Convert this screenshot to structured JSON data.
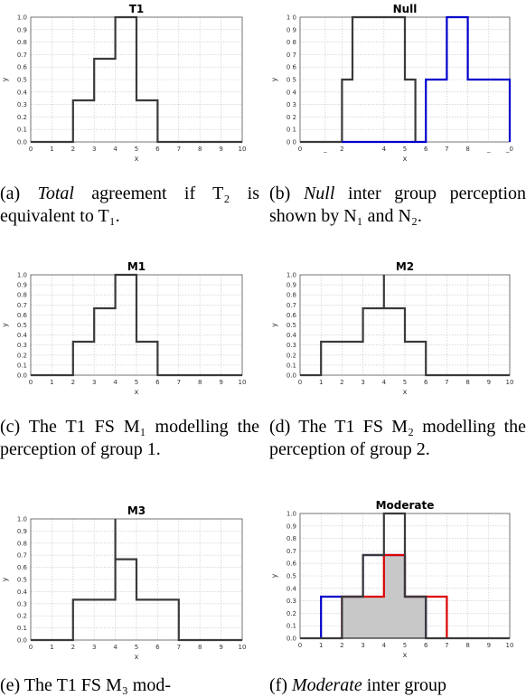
{
  "chart_data": [
    {
      "type": "line",
      "title": "T1",
      "xlabel": "x",
      "ylabel": "y",
      "xlim": [
        0,
        10
      ],
      "ylim": [
        0,
        1
      ],
      "x_ticks": [
        "0",
        "1",
        "2",
        "3",
        "4",
        "5",
        "6",
        "7",
        "8",
        "9",
        "10"
      ],
      "y_ticks": [
        "0.0",
        "0.1",
        "0.2",
        "0.3",
        "0.4",
        "0.5",
        "0.6",
        "0.7",
        "0.8",
        "0.9",
        "1.0"
      ],
      "series": [
        {
          "color": "#3a3a3a",
          "fill": false,
          "points": [
            [
              0,
              0
            ],
            [
              2,
              0
            ],
            [
              2,
              0.333
            ],
            [
              3,
              0.333
            ],
            [
              3,
              0.667
            ],
            [
              4,
              0.667
            ],
            [
              4,
              1
            ],
            [
              5,
              1
            ],
            [
              5,
              0.333
            ],
            [
              6,
              0.333
            ],
            [
              6,
              0
            ],
            [
              10,
              0
            ]
          ]
        }
      ]
    },
    {
      "type": "line",
      "title": "Null",
      "xlabel": "x",
      "ylabel": "y",
      "xlim": [
        0,
        10
      ],
      "ylim": [
        0,
        1
      ],
      "x_ticks": [
        "0",
        "_",
        "2",
        "4",
        "5",
        "6",
        "7",
        "8",
        "_",
        "_0"
      ],
      "x_tick_pos": [
        0,
        1.2,
        2,
        4,
        5,
        6,
        7,
        8,
        9,
        10
      ],
      "y_ticks": [
        "0 0",
        "0 1",
        "0 2",
        "0 3",
        "0 4",
        "0 5",
        "0 6",
        "0 7",
        "0 8",
        "0 9",
        "1 0"
      ],
      "series": [
        {
          "color": "#3a3a3a",
          "fill": false,
          "points": [
            [
              0,
              0
            ],
            [
              2,
              0
            ],
            [
              2,
              0.5
            ],
            [
              2.5,
              0.5
            ],
            [
              2.5,
              1
            ],
            [
              5,
              1
            ],
            [
              5,
              0.5
            ],
            [
              5.5,
              0.5
            ],
            [
              5.5,
              0
            ]
          ]
        },
        {
          "color": "#0000cc",
          "fill": false,
          "points": [
            [
              2,
              0
            ],
            [
              6,
              0
            ],
            [
              6,
              0.5
            ],
            [
              7,
              0.5
            ],
            [
              7,
              1
            ],
            [
              8,
              1
            ],
            [
              8,
              0.5
            ],
            [
              10,
              0.5
            ],
            [
              10,
              0
            ]
          ]
        }
      ]
    },
    {
      "type": "line",
      "title": "M1",
      "xlabel": "x",
      "ylabel": "y",
      "xlim": [
        0,
        10
      ],
      "ylim": [
        0,
        1
      ],
      "x_ticks": [
        "0",
        "1",
        "2",
        "3",
        "4",
        "5",
        "6",
        "7",
        "8",
        "9",
        "10"
      ],
      "y_ticks": [
        "0.0",
        "0.1",
        "0.2",
        "0.3",
        "0.4",
        "0.5",
        "0.6",
        "0.7",
        "0.8",
        "0.9",
        "1.0"
      ],
      "series": [
        {
          "color": "#3a3a3a",
          "fill": false,
          "points": [
            [
              0,
              0
            ],
            [
              2,
              0
            ],
            [
              2,
              0.333
            ],
            [
              3,
              0.333
            ],
            [
              3,
              0.667
            ],
            [
              4,
              0.667
            ],
            [
              4,
              1
            ],
            [
              5,
              1
            ],
            [
              5,
              0.333
            ],
            [
              6,
              0.333
            ],
            [
              6,
              0
            ],
            [
              10,
              0
            ]
          ]
        }
      ]
    },
    {
      "type": "line",
      "title": "M2",
      "xlabel": "x",
      "ylabel": "y",
      "xlim": [
        0,
        10
      ],
      "ylim": [
        0,
        1
      ],
      "x_ticks": [
        "0",
        "1",
        "2",
        "3",
        "4",
        "5",
        "6",
        "7",
        "8",
        "9",
        "10"
      ],
      "y_ticks": [
        "0.0",
        "0.1",
        "0.2",
        "0.3",
        "0.4",
        "0.5",
        "0.6",
        "0.7",
        "0.8",
        "0.9",
        "1.0"
      ],
      "series": [
        {
          "color": "#3a3a3a",
          "fill": false,
          "points": [
            [
              0,
              0
            ],
            [
              1,
              0
            ],
            [
              1,
              0.333
            ],
            [
              3,
              0.333
            ],
            [
              3,
              0.667
            ],
            [
              4,
              0.667
            ],
            [
              4,
              1
            ],
            [
              4,
              0.667
            ],
            [
              5,
              0.667
            ],
            [
              5,
              0.333
            ],
            [
              6,
              0.333
            ],
            [
              6,
              0
            ],
            [
              10,
              0
            ]
          ]
        }
      ]
    },
    {
      "type": "line",
      "title": "M3",
      "xlabel": "x",
      "ylabel": "y",
      "xlim": [
        0,
        10
      ],
      "ylim": [
        0,
        1
      ],
      "x_ticks": [
        "0",
        "1",
        "2",
        "3",
        "4",
        "5",
        "6",
        "7",
        "8",
        "9",
        "10"
      ],
      "y_ticks": [
        "0.0",
        "0.1",
        "0.2",
        "0.3",
        "0.4",
        "0.5",
        "0.6",
        "0.7",
        "0.8",
        "0.9",
        "1.0"
      ],
      "series": [
        {
          "color": "#3a3a3a",
          "fill": false,
          "points": [
            [
              0,
              0
            ],
            [
              2,
              0
            ],
            [
              2,
              0.333
            ],
            [
              4,
              0.333
            ],
            [
              4,
              1
            ],
            [
              4,
              0.667
            ],
            [
              5,
              0.667
            ],
            [
              5,
              0.333
            ],
            [
              7,
              0.333
            ],
            [
              7,
              0
            ],
            [
              10,
              0
            ]
          ]
        }
      ]
    },
    {
      "type": "area",
      "title": "Moderate",
      "xlabel": "x",
      "ylabel": "y",
      "xlim": [
        0,
        10
      ],
      "ylim": [
        0,
        1
      ],
      "x_ticks": [
        "0",
        "1",
        "2",
        "3",
        "4",
        "5",
        "6",
        "7",
        "8",
        "9",
        "10"
      ],
      "y_ticks": [
        "0.0",
        "0.1",
        "0.2",
        "0.3",
        "0.4",
        "0.5",
        "0.6",
        "0.7",
        "0.8",
        "0.9",
        "1.0"
      ],
      "series": [
        {
          "color": "#000000",
          "fill": true,
          "fill_color": "#c8c8c8",
          "points": [
            [
              2,
              0
            ],
            [
              2,
              0.333
            ],
            [
              4,
              0.333
            ],
            [
              4,
              0.667
            ],
            [
              5,
              0.667
            ],
            [
              5,
              0.333
            ],
            [
              6,
              0.333
            ],
            [
              6,
              0
            ]
          ]
        },
        {
          "color": "#0000cc",
          "fill": false,
          "points": [
            [
              1,
              0
            ],
            [
              1,
              0.333
            ],
            [
              3,
              0.333
            ],
            [
              3,
              0.667
            ],
            [
              5,
              0.667
            ],
            [
              5,
              0.333
            ],
            [
              6,
              0.333
            ],
            [
              6,
              0
            ]
          ]
        },
        {
          "color": "#dd0000",
          "fill": false,
          "points": [
            [
              2,
              0
            ],
            [
              2,
              0.333
            ],
            [
              4,
              0.333
            ],
            [
              4,
              0.667
            ],
            [
              5,
              0.667
            ],
            [
              5,
              0.333
            ],
            [
              7,
              0.333
            ],
            [
              7,
              0
            ]
          ]
        },
        {
          "color": "#3a3a3a",
          "fill": false,
          "points": [
            [
              0,
              0
            ],
            [
              2,
              0
            ],
            [
              2,
              0.333
            ],
            [
              3,
              0.333
            ],
            [
              3,
              0.667
            ],
            [
              4,
              0.667
            ],
            [
              4,
              1
            ],
            [
              5,
              1
            ],
            [
              5,
              0.333
            ],
            [
              6,
              0.333
            ],
            [
              6,
              0
            ],
            [
              10,
              0
            ]
          ]
        }
      ]
    }
  ],
  "captions": [
    {
      "label": "(a)",
      "emph": "Total",
      "rest": " agreement if T₂ is equivalent to T₁."
    },
    {
      "label": "(b)",
      "emph": "Null",
      "rest": " inter group perception shown by N₁ and N₂."
    },
    {
      "label": "(c)",
      "emph": "",
      "rest": "The T1 FS M₁ modelling the perception of group 1."
    },
    {
      "label": "(d)",
      "emph": "",
      "rest": "The T1 FS M₂ modelling the perception of group 2."
    },
    {
      "label": "(e)",
      "emph": "",
      "rest": "The T1 FS M₃ mod-"
    },
    {
      "label": "(f)",
      "emph": "Moderate",
      "rest": " inter group"
    }
  ]
}
